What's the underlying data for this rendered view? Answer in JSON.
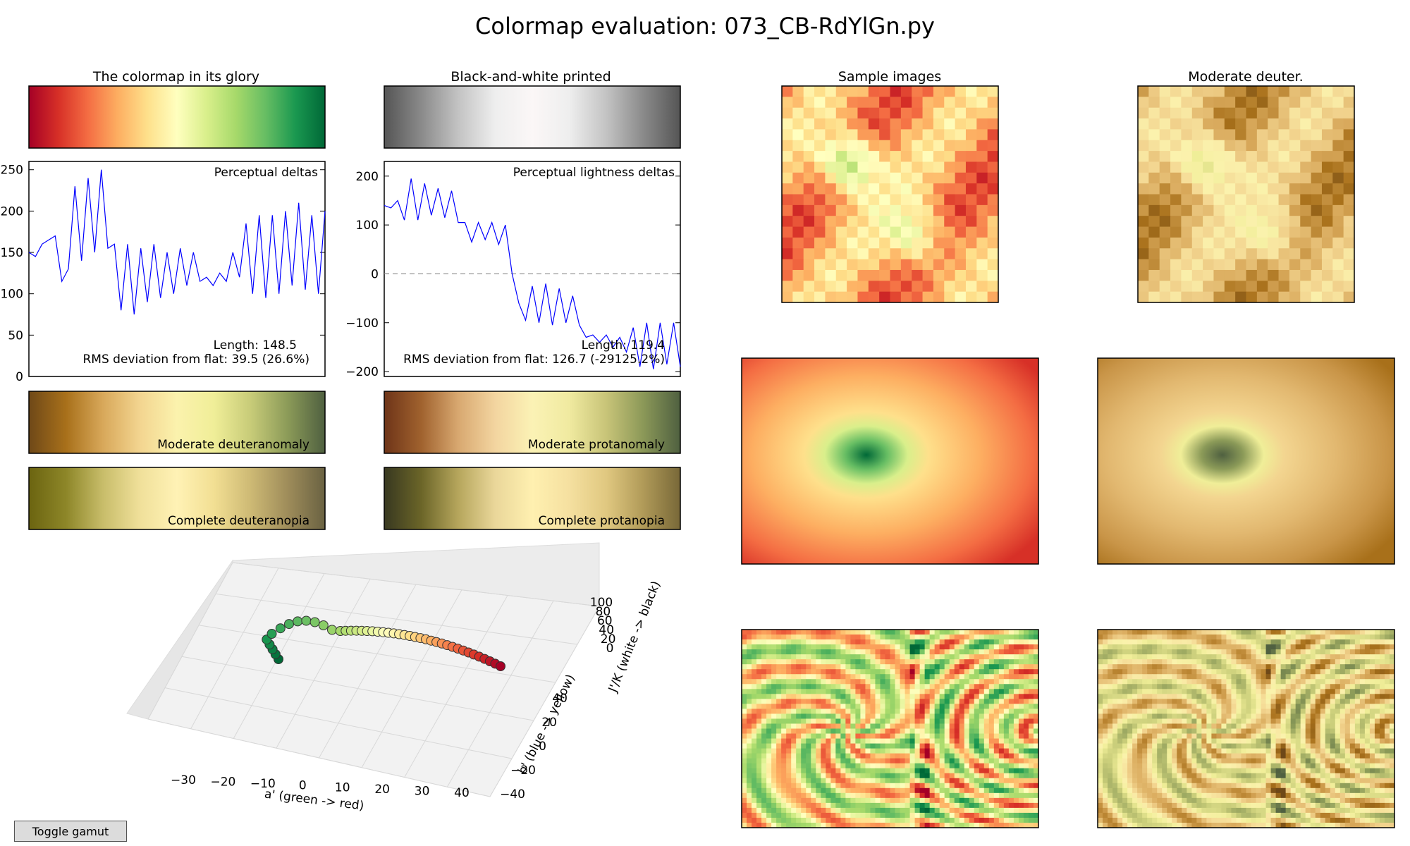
{
  "figure_title": "Colormap evaluation: 073_CB-RdYlGn.py",
  "panels": {
    "glory_title": "The colormap in its glory",
    "bw_title": "Black-and-white printed",
    "samples_title": "Sample images",
    "deuter_title": "Moderate deuter.",
    "deut_label": "Moderate deuteranomaly",
    "prot_label": "Moderate protanomaly",
    "cdeut_label": "Complete deuteranopia",
    "cprot_label": "Complete protanopia"
  },
  "toggle_button": "Toggle gamut",
  "colors": {
    "line": "#0000ff",
    "rdylgn": [
      "#a50026",
      "#d73027",
      "#f46d43",
      "#fdae61",
      "#fee08b",
      "#ffffbf",
      "#d9ef8b",
      "#a6d96a",
      "#66bd63",
      "#1a9850",
      "#006837"
    ],
    "bw": [
      "#555555",
      "#8a8a8a",
      "#c3c3c3",
      "#eeeeee",
      "#fbf7f7",
      "#eeeeee",
      "#c3c3c3",
      "#8a8a8a",
      "#555555"
    ],
    "deut": [
      "#6e4818",
      "#a8701a",
      "#d8a85a",
      "#f3d590",
      "#fbf2ad",
      "#f0ee98",
      "#c7cb78",
      "#8b9a58",
      "#4f6040"
    ],
    "prot": [
      "#6e3418",
      "#a0622e",
      "#d8a870",
      "#f3d5a0",
      "#fbf2b5",
      "#f0eaa0",
      "#c8c478",
      "#8b9858",
      "#4f6040"
    ],
    "cdeut": [
      "#6b6410",
      "#8d8628",
      "#c8bd6a",
      "#f0e09a",
      "#fff2b5",
      "#f2df93",
      "#cdb974",
      "#9e8c5a",
      "#6a6242"
    ],
    "cprot": [
      "#383820",
      "#6b6528",
      "#b6a65c",
      "#ead79a",
      "#fff0b0",
      "#f5e0a0",
      "#e0c880",
      "#b09a58",
      "#786838"
    ],
    "deut_map": [
      "#6e4818",
      "#a8701a",
      "#d8a85a",
      "#f3d590",
      "#fbf2ad",
      "#f0ee98",
      "#c7cb78",
      "#8b9a58",
      "#4f6040"
    ]
  },
  "chart_data": [
    {
      "type": "line",
      "title": "Perceptual deltas",
      "ylim": [
        0,
        260
      ],
      "yticks": [
        0,
        50,
        100,
        150,
        200,
        250
      ],
      "annotations": [
        "Length: 148.5",
        "RMS deviation from flat: 39.5 (26.6%)"
      ],
      "series": [
        {
          "values": [
            150,
            145,
            160,
            165,
            170,
            115,
            130,
            230,
            140,
            240,
            150,
            250,
            155,
            160,
            80,
            160,
            75,
            155,
            90,
            160,
            95,
            150,
            100,
            155,
            110,
            150,
            115,
            120,
            110,
            125,
            115,
            150,
            120,
            185,
            100,
            195,
            95,
            195,
            100,
            200,
            110,
            210,
            105,
            195,
            100,
            200
          ]
        }
      ]
    },
    {
      "type": "line",
      "title": "Perceptual lightness deltas",
      "ylim": [
        -210,
        230
      ],
      "yticks": [
        -200,
        -100,
        0,
        100,
        200
      ],
      "annotations": [
        "Length: 119.4",
        "RMS deviation from flat: 126.7 (-29125.2%)"
      ],
      "series": [
        {
          "values": [
            140,
            135,
            150,
            110,
            195,
            110,
            185,
            120,
            175,
            115,
            170,
            105,
            105,
            65,
            105,
            70,
            105,
            60,
            100,
            0,
            -60,
            -95,
            -25,
            -100,
            -20,
            -105,
            -30,
            -100,
            -45,
            -105,
            -130,
            -125,
            -140,
            -125,
            -150,
            -130,
            -160,
            -110,
            -190,
            -100,
            -195,
            -100,
            -185,
            -100,
            -190
          ]
        }
      ]
    },
    {
      "type": "scatter",
      "xlabel": "a' (green -> red)",
      "ylabel": "b' (blue -> yellow)",
      "zlabel": "J'/K (white -> black)",
      "xticks": [
        -30,
        -20,
        -10,
        0,
        10,
        20,
        30,
        40
      ],
      "yticks": [
        -40,
        -20,
        0,
        20,
        40
      ],
      "zticks": [
        0,
        20,
        40,
        60,
        80,
        100
      ]
    }
  ]
}
